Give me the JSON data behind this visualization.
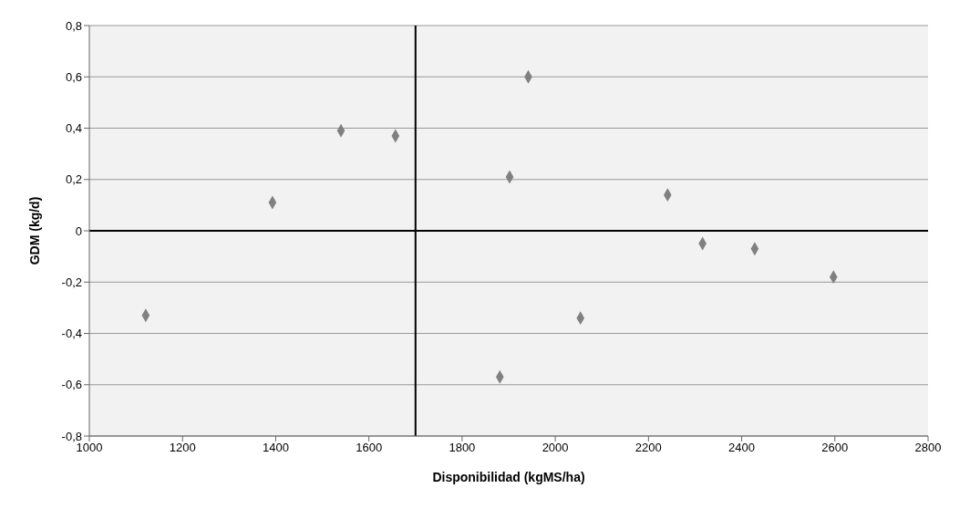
{
  "chart_data": {
    "type": "scatter",
    "xlabel": "Disponibilidad (kgMS/ha)",
    "ylabel": "GDM (kg/d)",
    "x": [
      1121,
      1393,
      1540,
      1657,
      1902,
      1942,
      1881,
      2054,
      2241,
      2316,
      2428,
      2597
    ],
    "series": [
      {
        "color": "#808080",
        "values": [
          -0.33,
          0.11,
          0.39,
          0.37,
          0.21,
          0.6,
          -0.57,
          -0.34,
          0.14,
          -0.05,
          -0.07,
          -0.18
        ]
      }
    ],
    "xlim": [
      1000,
      2800
    ],
    "xticks": [
      1000,
      1200,
      1400,
      1600,
      1800,
      2000,
      2200,
      2400,
      2600,
      2800
    ],
    "ylim": [
      -0.8,
      0.8
    ],
    "yticks": [
      {
        "value": -0.8,
        "label": "-0,8"
      },
      {
        "value": -0.6,
        "label": "-0,6"
      },
      {
        "value": -0.4,
        "label": "-0,4"
      },
      {
        "value": -0.2,
        "label": "-0,2"
      },
      {
        "value": 0,
        "label": "0"
      },
      {
        "value": 0.2,
        "label": "0,2"
      },
      {
        "value": 0.4,
        "label": "0,4"
      },
      {
        "value": 0.6,
        "label": "0,6"
      },
      {
        "value": 0.8,
        "label": "0,8"
      }
    ],
    "ref_lines": [
      {
        "axis": "x",
        "value": 1700,
        "color": "#000000"
      },
      {
        "axis": "y",
        "value": 0,
        "color": "#000000"
      }
    ],
    "grid": "y",
    "marker": "diamond"
  }
}
